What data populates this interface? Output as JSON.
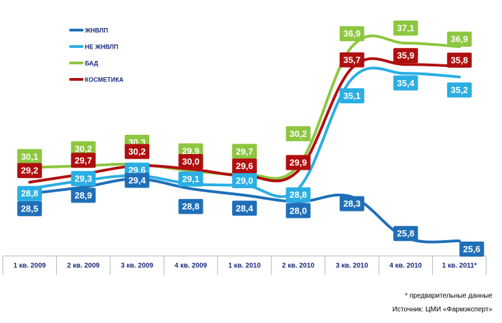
{
  "chart_data": {
    "type": "line",
    "categories": [
      "1 кв. 2009",
      "2 кв. 2009",
      "3 кв. 2009",
      "4 кв. 2009",
      "1 кв. 2010",
      "2 кв. 2010",
      "3 кв. 2010",
      "4 кв. 2010",
      "1 кв. 2011*"
    ],
    "series": [
      {
        "name": "ЖНВЛП",
        "color": "#1f6fb8",
        "values": [
          28.5,
          28.9,
          29.4,
          28.8,
          28.4,
          28.0,
          28.3,
          25.8,
          25.6
        ]
      },
      {
        "name": "НЕ ЖНВЛП",
        "color": "#2aaee3",
        "values": [
          28.8,
          29.3,
          29.6,
          29.1,
          29.0,
          28.8,
          35.1,
          35.4,
          35.2
        ]
      },
      {
        "name": "БАД",
        "color": "#8dc63f",
        "values": [
          30.1,
          30.2,
          30.3,
          29.9,
          29.7,
          30.2,
          36.9,
          37.1,
          36.9
        ]
      },
      {
        "name": "КОСМЕТИКА",
        "color": "#b00f0f",
        "values": [
          29.2,
          29.7,
          30.2,
          30.0,
          29.6,
          29.9,
          35.7,
          35.9,
          35.8
        ]
      }
    ],
    "data_labels": {
      "ЖНВЛП": [
        "28,5",
        "28,9",
        "29,4",
        "28,8",
        "28,4",
        "28,0",
        "28,3",
        "25,8",
        "25,6"
      ],
      "НЕ ЖНВЛП": [
        "28,8",
        "29,3",
        "29,6",
        "29,1",
        "29,0",
        "28,8",
        "35,1",
        "35,4",
        "35,2"
      ],
      "БАД": [
        "30,1",
        "30,2",
        "30,3",
        "29,9",
        "29,7",
        "30,2",
        "36,9",
        "37,1",
        "36,9"
      ],
      "КОСМЕТИКА": [
        "29,2",
        "29,7",
        "30,2",
        "30,0",
        "29,6",
        "29,9",
        "35,7",
        "35,9",
        "35,8"
      ]
    },
    "title": "",
    "xlabel": "",
    "ylabel": "",
    "grid": false,
    "legend_position": "top-left",
    "footnotes": [
      "* предварительные  данные",
      "Источник: ЦМИ «Фармэксперт»"
    ]
  }
}
